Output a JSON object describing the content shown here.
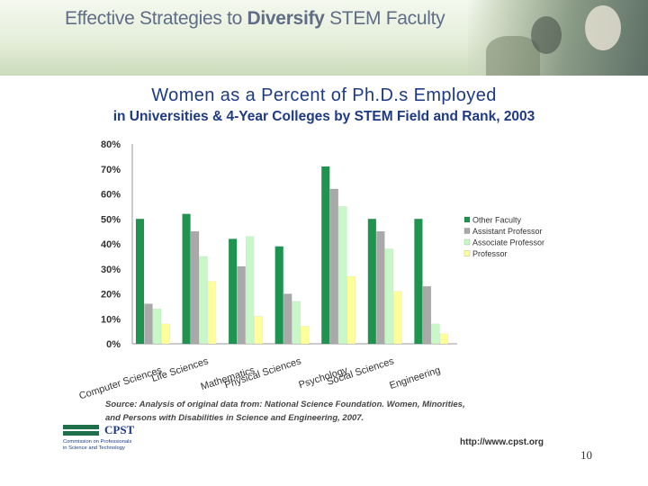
{
  "banner": {
    "title_prefix": "Effective Strategies to ",
    "title_emph": "Diversify",
    "title_suffix": " STEM Faculty"
  },
  "chart_data": {
    "type": "bar",
    "title": "Women as a Percent of Ph.D.s Employed",
    "subtitle": "in Universities & 4-Year Colleges by STEM Field and Rank, 2003",
    "xlabel": "",
    "ylabel": "",
    "ylim": [
      0,
      80
    ],
    "y_ticks": [
      "0%",
      "10%",
      "20%",
      "30%",
      "40%",
      "50%",
      "60%",
      "70%",
      "80%"
    ],
    "grid": false,
    "legend_position": "right",
    "categories": [
      "Computer Sciences",
      "Life Sciences",
      "Mathematics",
      "Physical Sciences",
      "Psychology",
      "Social Sciences",
      "Engineering"
    ],
    "series": [
      {
        "name": "Other Faculty",
        "color": "#1e9450",
        "values": [
          50,
          52,
          42,
          39,
          71,
          50,
          50
        ]
      },
      {
        "name": "Assistant Professor",
        "color": "#a9a9a9",
        "values": [
          16,
          45,
          31,
          20,
          62,
          45,
          23
        ]
      },
      {
        "name": "Associate Professor",
        "color": "#c8f7c8",
        "values": [
          14,
          35,
          43,
          17,
          55,
          38,
          8
        ]
      },
      {
        "name": "Professor",
        "color": "#ffff99",
        "values": [
          8,
          25,
          11,
          7,
          27,
          21,
          4
        ]
      }
    ]
  },
  "source": {
    "line1": "Source: Analysis of original data from: National Science Foundation. Women, Minorities,",
    "line2": "and Persons with Disabilities in Science and Engineering, 2007."
  },
  "logo": {
    "name": "CPST",
    "subtitle": "Commission on Professionals in Science and Technology"
  },
  "footer": {
    "url": "http://www.cpst.org",
    "page_number": "10"
  }
}
